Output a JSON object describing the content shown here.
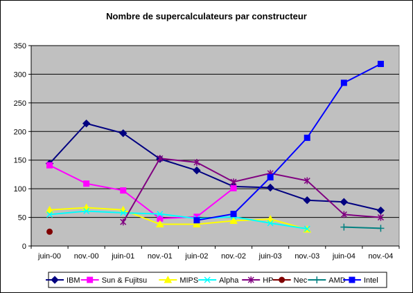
{
  "chart_data": {
    "type": "line",
    "title": "Nombre de supercalculateurs par constructeur",
    "xlabel": "",
    "ylabel": "",
    "ylim": [
      0,
      350
    ],
    "yticks": [
      0,
      50,
      100,
      150,
      200,
      250,
      300,
      350
    ],
    "grid": true,
    "legend_position": "bottom",
    "plot_background": "#c0c0c0",
    "categories": [
      "juin-00",
      "nov.-00",
      "juin-01",
      "nov.-01",
      "juin-02",
      "nov.-02",
      "juin-03",
      "nov.-03",
      "juin-04",
      "nov.-04"
    ],
    "series": [
      {
        "name": "IBM",
        "color": "#000080",
        "marker": "diamond",
        "values": [
          144,
          214,
          197,
          152,
          132,
          104,
          102,
          80,
          77,
          62
        ]
      },
      {
        "name": "Sun & Fujitsu",
        "color": "#ff00ff",
        "marker": "square",
        "values": [
          141,
          109,
          97,
          48,
          51,
          101,
          null,
          null,
          null,
          null
        ]
      },
      {
        "name": "MIPS",
        "color": "#ffff00",
        "marker": "triangle",
        "values": [
          63,
          67,
          63,
          38,
          38,
          44,
          47,
          29,
          null,
          null
        ]
      },
      {
        "name": "Alpha",
        "color": "#00ffff",
        "marker": "x",
        "values": [
          55,
          61,
          58,
          56,
          48,
          51,
          40,
          30,
          null,
          null
        ]
      },
      {
        "name": "HP",
        "color": "#800080",
        "marker": "star",
        "values": [
          null,
          null,
          42,
          153,
          146,
          112,
          127,
          114,
          55,
          50
        ]
      },
      {
        "name": "Nec",
        "color": "#800000",
        "marker": "circle",
        "values": [
          25,
          null,
          null,
          null,
          null,
          null,
          null,
          null,
          null,
          null
        ]
      },
      {
        "name": "AMD",
        "color": "#008080",
        "marker": "plus",
        "values": [
          null,
          null,
          null,
          null,
          null,
          null,
          null,
          null,
          33,
          31
        ]
      },
      {
        "name": "Intel",
        "color": "#0000ff",
        "marker": "square",
        "values": [
          null,
          null,
          null,
          null,
          45,
          56,
          120,
          189,
          285,
          318
        ]
      }
    ]
  }
}
